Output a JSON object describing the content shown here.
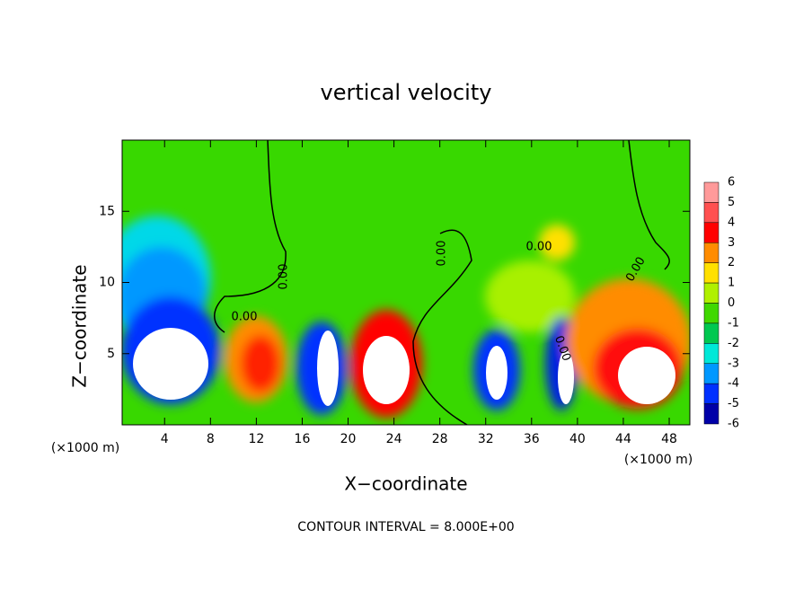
{
  "chart_data": {
    "type": "contour",
    "title": "vertical velocity",
    "xlabel": "X−coordinate",
    "ylabel": "Z−coordinate",
    "x_unit": "(×1000 m)",
    "xlim": [
      0.3,
      49.8
    ],
    "ylim": [
      0,
      20
    ],
    "xticks": [
      4,
      8,
      12,
      16,
      20,
      24,
      28,
      32,
      36,
      40,
      44,
      48
    ],
    "yticks": [
      5,
      10,
      15
    ],
    "colorbar": {
      "ticks": [
        6,
        5,
        4,
        3,
        2,
        1,
        0,
        -1,
        -2,
        -3,
        -4,
        -5,
        -6
      ],
      "colors": [
        "#ff9a9a",
        "#ff5050",
        "#ff0000",
        "#ff8c00",
        "#ffe000",
        "#b0f000",
        "#40d800",
        "#00c850",
        "#00e8d8",
        "#0098ff",
        "#0030ff",
        "#0000a8"
      ]
    },
    "contour_labels": [
      "0.00",
      "0.00",
      "0.00",
      "0.00",
      "0.00",
      "0.00"
    ],
    "footer": "CONTOUR INTERVAL = 8.000E+00"
  }
}
